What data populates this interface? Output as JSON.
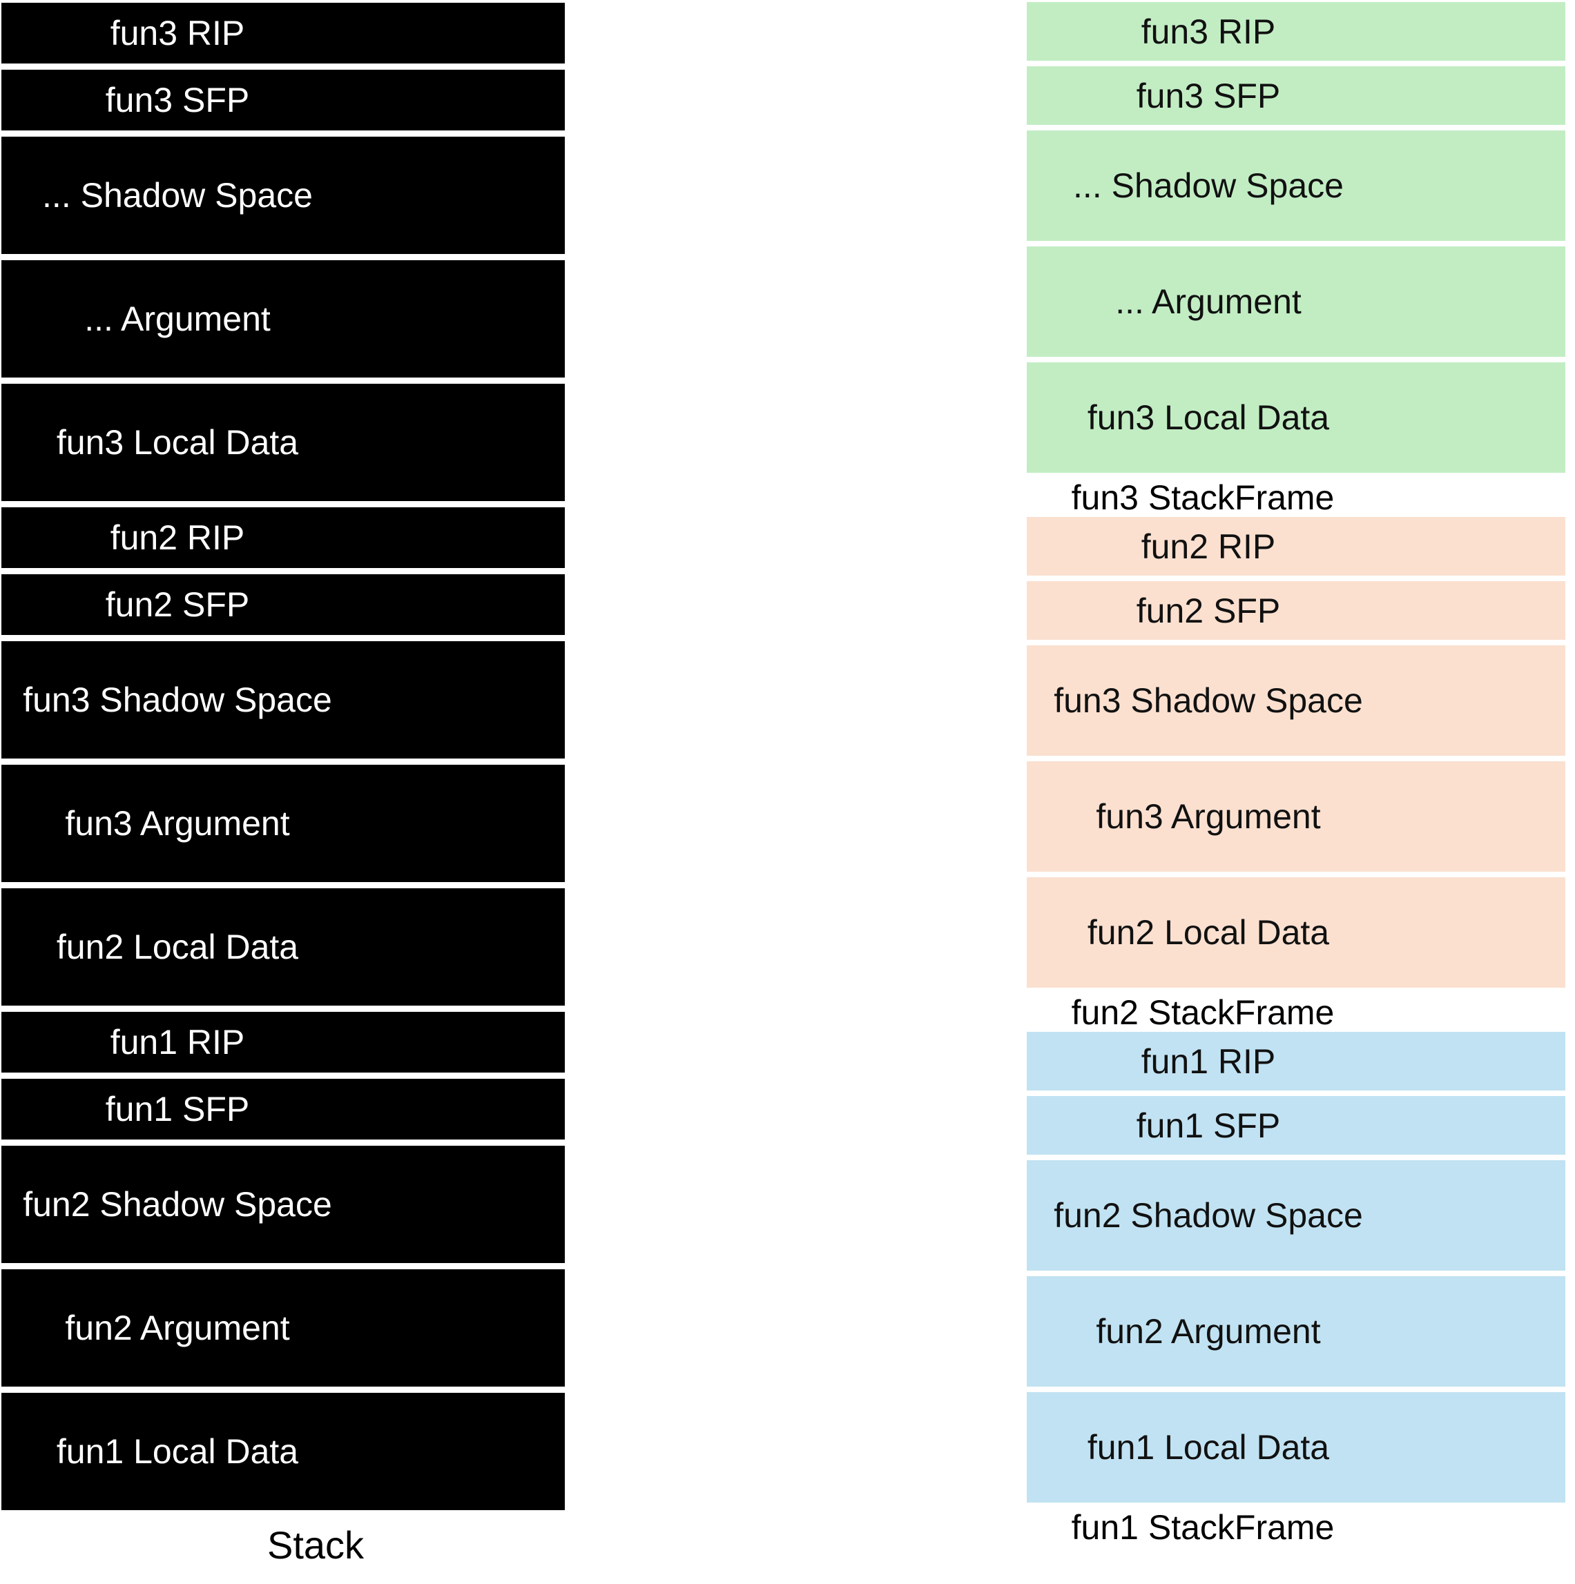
{
  "diagram": {
    "background": "#ffffff",
    "left_column": {
      "label": "Stack",
      "cell_background": "#000000",
      "cell_text_color": "#ffffff",
      "cells": [
        {
          "text": "fun3 RIP",
          "size": "small"
        },
        {
          "text": "fun3 SFP",
          "size": "small"
        },
        {
          "text": "... Shadow Space",
          "size": "large"
        },
        {
          "text": "... Argument",
          "size": "large"
        },
        {
          "text": "fun3 Local Data",
          "size": "large"
        },
        {
          "text": "fun2 RIP",
          "size": "small"
        },
        {
          "text": "fun2 SFP",
          "size": "small"
        },
        {
          "text": "fun3 Shadow Space",
          "size": "large"
        },
        {
          "text": "fun3 Argument",
          "size": "large"
        },
        {
          "text": "fun2 Local Data",
          "size": "large"
        },
        {
          "text": "fun1 RIP",
          "size": "small"
        },
        {
          "text": "fun1 SFP",
          "size": "small"
        },
        {
          "text": "fun2 Shadow Space",
          "size": "large"
        },
        {
          "text": "fun2 Argument",
          "size": "large"
        },
        {
          "text": "fun1 Local Data",
          "size": "large"
        }
      ]
    },
    "right_column": {
      "cell_text_color": "#111111",
      "label_text_color": "#000000",
      "frames": [
        {
          "label": "fun3 StackFrame",
          "color": "#c2edc3",
          "cells": [
            {
              "text": "fun3 RIP",
              "size": "small"
            },
            {
              "text": "fun3 SFP",
              "size": "small"
            },
            {
              "text": "... Shadow Space",
              "size": "large"
            },
            {
              "text": "... Argument",
              "size": "large"
            },
            {
              "text": "fun3 Local Data",
              "size": "large"
            }
          ]
        },
        {
          "label": "fun2 StackFrame",
          "color": "#fbe0d0",
          "cells": [
            {
              "text": "fun2 RIP",
              "size": "small"
            },
            {
              "text": "fun2 SFP",
              "size": "small"
            },
            {
              "text": "fun3 Shadow Space",
              "size": "large"
            },
            {
              "text": "fun3 Argument",
              "size": "large"
            },
            {
              "text": "fun2 Local Data",
              "size": "large"
            }
          ]
        },
        {
          "label": "fun1 StackFrame",
          "color": "#c1e2f2",
          "cells": [
            {
              "text": "fun1 RIP",
              "size": "small"
            },
            {
              "text": "fun1 SFP",
              "size": "small"
            },
            {
              "text": "fun2 Shadow Space",
              "size": "large"
            },
            {
              "text": "fun2 Argument",
              "size": "large"
            },
            {
              "text": "fun1 Local Data",
              "size": "large"
            }
          ]
        }
      ]
    }
  }
}
